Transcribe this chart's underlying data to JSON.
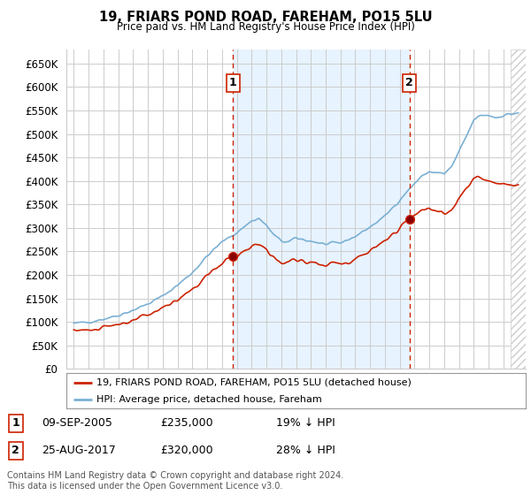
{
  "title": "19, FRIARS POND ROAD, FAREHAM, PO15 5LU",
  "subtitle": "Price paid vs. HM Land Registry's House Price Index (HPI)",
  "ylim": [
    0,
    680000
  ],
  "yticks": [
    0,
    50000,
    100000,
    150000,
    200000,
    250000,
    300000,
    350000,
    400000,
    450000,
    500000,
    550000,
    600000,
    650000
  ],
  "xlim_start": 1994.5,
  "xlim_end": 2025.5,
  "sale1_date": 2005.75,
  "sale1_price": 235000,
  "sale1_label": "1",
  "sale1_text": "09-SEP-2005",
  "sale1_amount": "£235,000",
  "sale1_pct": "19% ↓ HPI",
  "sale2_date": 2017.65,
  "sale2_price": 320000,
  "sale2_label": "2",
  "sale2_text": "25-AUG-2017",
  "sale2_amount": "£320,000",
  "sale2_pct": "28% ↓ HPI",
  "hpi_color": "#7ab0d4",
  "hpi_fill_color": "#ddeeff",
  "price_color": "#cc2200",
  "vline_color": "#cc2200",
  "legend_label1": "19, FRIARS POND ROAD, FAREHAM, PO15 5LU (detached house)",
  "legend_label2": "HPI: Average price, detached house, Fareham",
  "footer": "Contains HM Land Registry data © Crown copyright and database right 2024.\nThis data is licensed under the Open Government Licence v3.0.",
  "background_color": "#ffffff",
  "grid_color": "#cccccc"
}
